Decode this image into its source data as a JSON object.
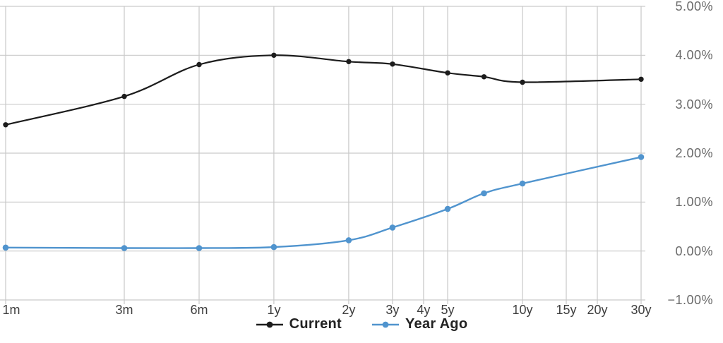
{
  "chart_data": {
    "type": "line",
    "title": "",
    "x_axis": {
      "scale": "log",
      "tick_labels": [
        "1m",
        "3m",
        "6m",
        "1y",
        "2y",
        "3y",
        "4y",
        "5y",
        "10y",
        "15y",
        "20y",
        "30y"
      ],
      "tick_months": [
        1,
        3,
        6,
        12,
        24,
        36,
        48,
        60,
        120,
        180,
        240,
        360
      ]
    },
    "y_axis": {
      "side": "right",
      "tick_labels": [
        "5.00%",
        "4.00%",
        "3.00%",
        "2.00%",
        "1.00%",
        "0.00%",
        "−1.00%"
      ],
      "tick_values": [
        5,
        4,
        3,
        2,
        1,
        0,
        -1
      ],
      "min": -1,
      "max": 5
    },
    "grid": true,
    "legend_position": "bottom",
    "x_maturities": [
      "1m",
      "3m",
      "6m",
      "1y",
      "2y",
      "3y",
      "5y",
      "7y",
      "10y",
      "30y"
    ],
    "x_months": [
      1,
      3,
      6,
      12,
      24,
      36,
      60,
      84,
      120,
      360
    ],
    "series": [
      {
        "name": "Current",
        "color": "#1c1c1c",
        "values": [
          2.58,
          3.16,
          3.81,
          4.0,
          3.87,
          3.82,
          3.64,
          3.56,
          3.45,
          3.51
        ]
      },
      {
        "name": "Year Ago",
        "color": "#5094ce",
        "values": [
          0.07,
          0.06,
          0.06,
          0.08,
          0.22,
          0.48,
          0.86,
          1.18,
          1.38,
          1.92
        ]
      }
    ]
  },
  "colors": {
    "background": "#ffffff",
    "grid": "#c9c9c9",
    "x_label": "#3e3e3e",
    "y_label": "#6a6a6a",
    "legend_text": "#222222"
  }
}
